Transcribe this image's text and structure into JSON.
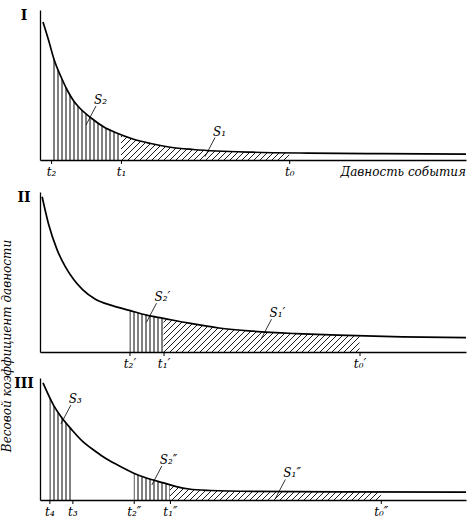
{
  "chart_data": [
    {
      "type": "line",
      "title": "I",
      "color": "#000000",
      "x_label": "Давность события",
      "x": [
        0.7,
        2,
        3.3,
        5,
        6.5,
        8,
        9.2,
        12,
        15,
        18,
        21.8,
        26,
        30.6,
        36,
        41.5,
        50,
        63,
        80,
        100
      ],
      "values": [
        92,
        80,
        67,
        55,
        46,
        39,
        35,
        28,
        22,
        18,
        14,
        11,
        8.5,
        7,
        6,
        5.2,
        4.6,
        4.2,
        3.9
      ],
      "xlim": [
        0,
        100
      ],
      "ylim": [
        0,
        100
      ],
      "xticks": [
        {
          "value": 2.6,
          "label": "t₂"
        },
        {
          "value": 19,
          "label": "t₁"
        },
        {
          "value": 58.5,
          "label": "t₀"
        }
      ],
      "tick_labels": "x",
      "regions": [
        {
          "label": "S₂",
          "from": 2.6,
          "to": 19,
          "line_style": "vertical"
        },
        {
          "label": "S₁",
          "from": 19,
          "to": 58.5,
          "line_style": "diagonal"
        }
      ]
    },
    {
      "type": "line",
      "title": "II",
      "color": "#000000",
      "y_label": "Весовой коэффициент давности",
      "x": [
        0.5,
        2,
        4,
        6,
        8,
        10,
        13,
        17,
        21,
        25,
        29,
        35,
        42,
        50,
        60,
        70,
        85,
        100
      ],
      "values": [
        97,
        80,
        64,
        53,
        45,
        39,
        33,
        29,
        26,
        23,
        21,
        18,
        15,
        13,
        11.5,
        10.5,
        9.5,
        9
      ],
      "xlim": [
        0,
        100
      ],
      "ylim": [
        0,
        100
      ],
      "xticks": [
        {
          "value": 21,
          "label": "t₂′"
        },
        {
          "value": 29,
          "label": "t₁′"
        },
        {
          "value": 75,
          "label": "t₀′"
        }
      ],
      "tick_labels": "x",
      "regions": [
        {
          "label": "S₂′",
          "from": 21,
          "to": 29,
          "line_style": "vertical"
        },
        {
          "label": "S₁′",
          "from": 29,
          "to": 75,
          "line_style": "diagonal"
        }
      ]
    },
    {
      "type": "line",
      "title": "III",
      "color": "#000000",
      "x": [
        0.7,
        2,
        3.3,
        5,
        7.6,
        10,
        13,
        15,
        18,
        22,
        25,
        29,
        32,
        35,
        40,
        50,
        70,
        100
      ],
      "values": [
        96,
        86,
        77,
        68,
        57,
        48,
        40,
        35,
        29,
        22,
        18,
        14,
        11,
        9,
        7.8,
        7,
        6.6,
        6.5
      ],
      "xlim": [
        0,
        100
      ],
      "ylim": [
        0,
        100
      ],
      "xticks": [
        {
          "value": 2.2,
          "label": "t₄"
        },
        {
          "value": 7.6,
          "label": "t₃"
        },
        {
          "value": 22,
          "label": "t₂″"
        },
        {
          "value": 30.5,
          "label": "t₁″"
        },
        {
          "value": 80,
          "label": "t₀″"
        }
      ],
      "tick_labels": "x",
      "regions": [
        {
          "label": "S₃",
          "from": 2.2,
          "to": 7.6,
          "line_style": "vertical"
        },
        {
          "label": "S₂″",
          "from": 22,
          "to": 30.5,
          "line_style": "vertical"
        },
        {
          "label": "S₁″",
          "from": 30.5,
          "to": 80,
          "line_style": "diagonal"
        }
      ]
    }
  ]
}
